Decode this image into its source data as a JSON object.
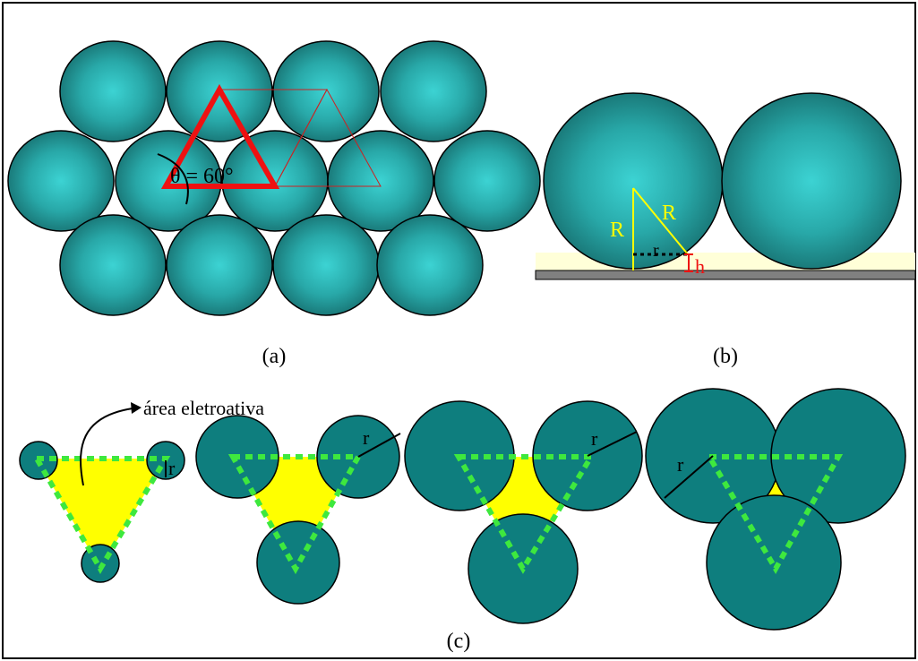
{
  "panels": {
    "a": {
      "label": "(a)",
      "angle_label": "θ = 60°"
    },
    "b": {
      "label": "(b)",
      "radius_label_left": "R",
      "radius_label_right": "R",
      "contact_radius_label": "r",
      "height_label": "h"
    },
    "c": {
      "label": "(c)",
      "annotation": "área eletroativa",
      "radius_labels": [
        "r",
        "r",
        "r",
        "r"
      ]
    }
  },
  "colors": {
    "particle_center": "#3cd3d3",
    "particle_edge": "#1a7a7a",
    "particle_flat": "#0e7e7e",
    "electroactive_area": "#ffff00",
    "triangle_dashes": "#3ee83e",
    "lattice_triangle": "#ee1111",
    "geometry_lines": "#ffff00",
    "height_marker": "#ee1111",
    "substrate": "#808080",
    "liquid_layer": "#ffffd8"
  }
}
